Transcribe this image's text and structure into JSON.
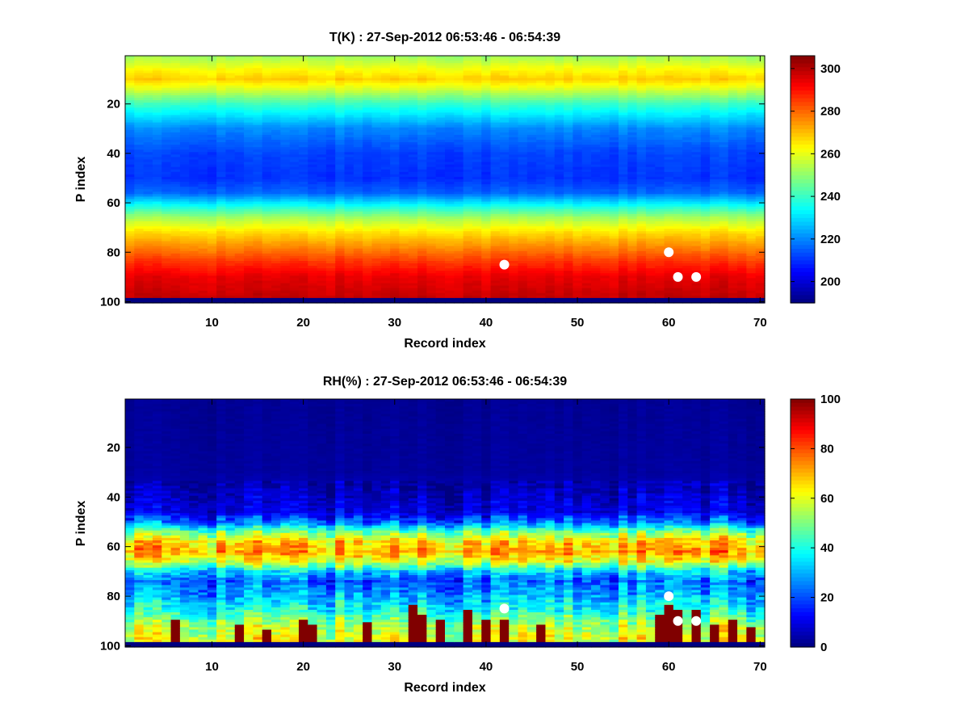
{
  "chart_data": [
    {
      "type": "heatmap",
      "title": "T(K) : 27-Sep-2012 06:53:46 - 06:54:39",
      "xlabel": "Record index",
      "ylabel": "P index",
      "xlim": [
        0.5,
        70.5
      ],
      "ylim": [
        0.5,
        100.5
      ],
      "y_reversed": true,
      "xticks": [
        10,
        20,
        30,
        40,
        50,
        60,
        70
      ],
      "yticks": [
        20,
        40,
        60,
        80,
        100
      ],
      "colormap": "jet",
      "color_range": [
        190,
        306
      ],
      "colorbar_ticks": [
        200,
        220,
        240,
        260,
        280,
        300
      ],
      "n_records": 70,
      "n_levels": 100,
      "profile": {
        "levels": [
          1,
          6,
          10,
          14,
          20,
          30,
          40,
          50,
          56,
          62,
          66,
          72,
          78,
          84,
          90,
          98
        ],
        "values": [
          252,
          262,
          268,
          258,
          240,
          220,
          212,
          210,
          216,
          238,
          252,
          266,
          276,
          286,
          294,
          298
        ]
      },
      "bottom_rows_value": 190,
      "markers": [
        {
          "x": 42,
          "y": 85
        },
        {
          "x": 60,
          "y": 80
        },
        {
          "x": 61,
          "y": 90
        },
        {
          "x": 63,
          "y": 90
        }
      ]
    },
    {
      "type": "heatmap",
      "title": "RH(%) : 27-Sep-2012 06:53:46 - 06:54:39",
      "xlabel": "Record index",
      "ylabel": "P index",
      "xlim": [
        0.5,
        70.5
      ],
      "ylim": [
        0.5,
        100.5
      ],
      "y_reversed": true,
      "xticks": [
        10,
        20,
        30,
        40,
        50,
        60,
        70
      ],
      "yticks": [
        20,
        40,
        60,
        80,
        100
      ],
      "colormap": "jet",
      "color_range": [
        0,
        100
      ],
      "colorbar_ticks": [
        0,
        20,
        40,
        60,
        80,
        100
      ],
      "n_records": 70,
      "n_levels": 100,
      "profile": {
        "levels": [
          1,
          30,
          38,
          46,
          50,
          54,
          58,
          62,
          66,
          70,
          74,
          80,
          86,
          92,
          98
        ],
        "values": [
          2,
          3,
          6,
          10,
          22,
          48,
          66,
          72,
          60,
          34,
          22,
          30,
          40,
          55,
          60
        ]
      },
      "bottom_rows_value": 0,
      "saturated_columns": [
        {
          "x": 6,
          "top": 90
        },
        {
          "x": 13,
          "top": 92
        },
        {
          "x": 16,
          "top": 94
        },
        {
          "x": 20,
          "top": 90
        },
        {
          "x": 21,
          "top": 92
        },
        {
          "x": 27,
          "top": 91
        },
        {
          "x": 32,
          "top": 84
        },
        {
          "x": 33,
          "top": 88
        },
        {
          "x": 35,
          "top": 90
        },
        {
          "x": 38,
          "top": 86
        },
        {
          "x": 40,
          "top": 90
        },
        {
          "x": 42,
          "top": 90
        },
        {
          "x": 46,
          "top": 92
        },
        {
          "x": 59,
          "top": 88
        },
        {
          "x": 60,
          "top": 84
        },
        {
          "x": 61,
          "top": 86
        },
        {
          "x": 63,
          "top": 86
        },
        {
          "x": 65,
          "top": 92
        },
        {
          "x": 67,
          "top": 90
        },
        {
          "x": 69,
          "top": 93
        }
      ],
      "markers": [
        {
          "x": 42,
          "y": 85
        },
        {
          "x": 60,
          "y": 80
        },
        {
          "x": 61,
          "y": 90
        },
        {
          "x": 63,
          "y": 90
        }
      ]
    }
  ]
}
